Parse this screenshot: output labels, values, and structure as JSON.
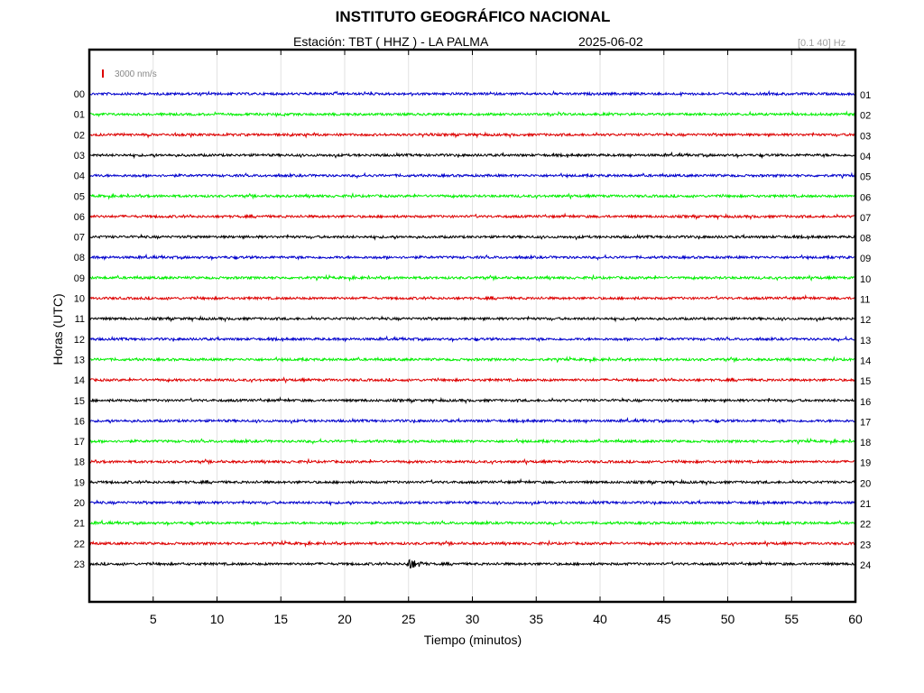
{
  "header": {
    "title": "INSTITUTO GEOGRÁFICO NACIONAL",
    "station_label": "Estación:  TBT ( HHZ ) - LA PALMA",
    "date": "2025-06-02",
    "filter_band": "[0.1 40] Hz"
  },
  "chart_data": {
    "type": "line",
    "title": "INSTITUTO GEOGRÁFICO NACIONAL",
    "xlabel": "Tiempo (minutos)",
    "ylabel": "Horas (UTC)",
    "xlim": [
      0,
      60
    ],
    "x_ticks": [
      "5",
      "10",
      "15",
      "20",
      "25",
      "30",
      "35",
      "40",
      "45",
      "50",
      "55",
      "60"
    ],
    "scale_label": "3000 nm/s",
    "grid": true,
    "left_hour_labels": [
      "00",
      "01",
      "02",
      "03",
      "04",
      "05",
      "06",
      "07",
      "08",
      "09",
      "10",
      "11",
      "12",
      "13",
      "14",
      "15",
      "16",
      "17",
      "18",
      "19",
      "20",
      "21",
      "22",
      "23"
    ],
    "right_hour_labels": [
      "01",
      "02",
      "03",
      "04",
      "05",
      "06",
      "07",
      "08",
      "09",
      "10",
      "11",
      "12",
      "13",
      "14",
      "15",
      "16",
      "17",
      "18",
      "19",
      "20",
      "21",
      "22",
      "23",
      "24"
    ],
    "trace_colors": [
      "#0000cc",
      "#00ee00",
      "#dd0000",
      "#000000"
    ],
    "events": [
      {
        "hour": "23",
        "start_minute": 24.8,
        "end_minute": 27.0
      }
    ]
  }
}
